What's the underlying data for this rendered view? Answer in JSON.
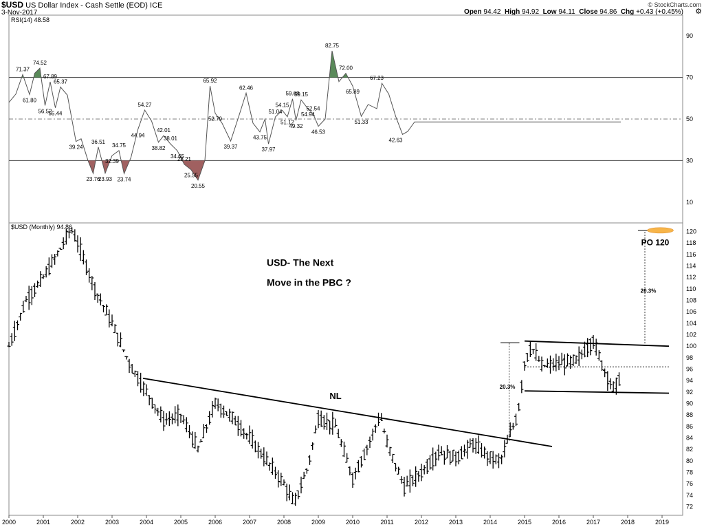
{
  "header": {
    "symbol": "$USD",
    "name": "US Dollar Index - Cash Settle (EOD)",
    "exchange": "ICE",
    "date": "3-Nov-2017",
    "open_label": "Open",
    "open": "94.42",
    "high_label": "High",
    "high": "94.92",
    "low_label": "Low",
    "low": "94.11",
    "close_label": "Close",
    "close": "94.86",
    "chg_label": "Chg",
    "chg": "+0.43 (+0.45%)",
    "watermark": "© StockCharts.com"
  },
  "chart_data": [
    {
      "type": "line",
      "title": "RSI(14) 48.58",
      "ylim": [
        0,
        100
      ],
      "yticks": [
        10,
        30,
        50,
        70,
        90
      ],
      "overbought": 70,
      "oversold": 30,
      "midline": 50,
      "colors": {
        "line": "#555555",
        "overbought_fill": "#5a8a5a",
        "oversold_fill": "#a06060"
      },
      "x": [
        2000.0,
        2000.2,
        2000.4,
        2000.6,
        2000.75,
        2000.9,
        2001.05,
        2001.2,
        2001.35,
        2001.5,
        2001.7,
        2001.95,
        2002.1,
        2002.3,
        2002.45,
        2002.6,
        2002.8,
        2003.0,
        2003.2,
        2003.35,
        2003.55,
        2003.75,
        2003.95,
        2004.15,
        2004.35,
        2004.5,
        2004.7,
        2004.9,
        2005.1,
        2005.3,
        2005.5,
        2005.7,
        2005.85,
        2006.0,
        2006.2,
        2006.45,
        2006.7,
        2006.9,
        2007.1,
        2007.3,
        2007.45,
        2007.55,
        2007.75,
        2007.95,
        2008.1,
        2008.25,
        2008.35,
        2008.5,
        2008.7,
        2008.85,
        2009.0,
        2009.2,
        2009.4,
        2009.6,
        2009.8,
        2010.0,
        2010.25,
        2010.45,
        2010.7,
        2010.85,
        2011.05,
        2011.25,
        2011.45,
        2011.6,
        2011.8,
        2012.0,
        2012.1,
        2012.25,
        2012.4,
        2012.55,
        2012.75,
        2012.95,
        2013.2,
        2013.45,
        2013.6,
        2013.75,
        2013.95,
        2014.15,
        2014.3,
        2014.5,
        2014.7,
        2014.9,
        2015.05,
        2015.15,
        2015.3,
        2015.45,
        2015.65,
        2015.85,
        2016.0,
        2016.2,
        2016.35,
        2016.55,
        2016.75,
        2016.9,
        2017.0,
        2017.15,
        2017.3,
        2017.45,
        2017.6,
        2017.8
      ],
      "y": [
        58.0,
        62.0,
        71.4,
        61.8,
        72.0,
        74.5,
        56.5,
        67.9,
        55.4,
        65.4,
        61.5,
        39.2,
        40.5,
        30.0,
        23.8,
        36.5,
        23.9,
        32.4,
        34.8,
        23.7,
        31.5,
        44.9,
        54.3,
        49.0,
        38.8,
        42.0,
        38.0,
        34.7,
        28.2,
        25.6,
        20.6,
        30.0,
        65.9,
        52.8,
        48.0,
        39.4,
        52.0,
        62.5,
        48.0,
        43.8,
        50.0,
        38.0,
        51.0,
        54.2,
        51.1,
        59.7,
        49.3,
        59.2,
        54.9,
        52.5,
        46.5,
        50.0,
        82.8,
        68.0,
        72.0,
        65.9,
        51.3,
        57.0,
        55.0,
        67.2,
        62.0,
        51.3,
        42.6,
        44.0,
        48.6,
        48.6,
        48.6,
        48.6,
        48.6,
        48.6,
        48.6,
        48.6,
        48.6,
        48.6,
        48.6,
        48.6,
        48.6,
        48.6,
        48.6,
        48.6,
        48.6,
        48.6,
        48.6,
        48.6,
        48.6,
        48.6,
        48.6,
        48.6,
        48.6,
        48.6,
        48.6,
        48.6,
        48.6,
        48.6,
        48.6,
        48.6,
        48.6,
        48.6,
        48.6,
        48.6
      ],
      "annotations": [
        {
          "x": 2000.4,
          "y": 71.4,
          "text": "71.37",
          "pos": "above"
        },
        {
          "x": 2000.6,
          "y": 61.8,
          "text": "61.80",
          "pos": "below"
        },
        {
          "x": 2000.9,
          "y": 74.5,
          "text": "74.52",
          "pos": "above"
        },
        {
          "x": 2001.05,
          "y": 56.5,
          "text": "56.52",
          "pos": "below"
        },
        {
          "x": 2001.2,
          "y": 67.9,
          "text": "67.89",
          "pos": "above"
        },
        {
          "x": 2001.35,
          "y": 55.4,
          "text": "55.44",
          "pos": "below"
        },
        {
          "x": 2001.5,
          "y": 65.4,
          "text": "65.37",
          "pos": "above"
        },
        {
          "x": 2001.95,
          "y": 39.2,
          "text": "39.24",
          "pos": "below"
        },
        {
          "x": 2002.45,
          "y": 23.8,
          "text": "23.76",
          "pos": "below"
        },
        {
          "x": 2002.6,
          "y": 36.5,
          "text": "36.51",
          "pos": "above"
        },
        {
          "x": 2002.8,
          "y": 23.9,
          "text": "23.93",
          "pos": "below"
        },
        {
          "x": 2003.0,
          "y": 32.4,
          "text": "32.39",
          "pos": "below"
        },
        {
          "x": 2003.2,
          "y": 34.8,
          "text": "34.75",
          "pos": "above"
        },
        {
          "x": 2003.35,
          "y": 23.7,
          "text": "23.74",
          "pos": "below"
        },
        {
          "x": 2003.75,
          "y": 44.9,
          "text": "44.94",
          "pos": "below"
        },
        {
          "x": 2003.95,
          "y": 54.3,
          "text": "54.27",
          "pos": "above"
        },
        {
          "x": 2004.35,
          "y": 38.8,
          "text": "38.82",
          "pos": "below"
        },
        {
          "x": 2004.5,
          "y": 42.0,
          "text": "42.01",
          "pos": "above"
        },
        {
          "x": 2004.7,
          "y": 38.0,
          "text": "38.01",
          "pos": "above"
        },
        {
          "x": 2004.9,
          "y": 34.7,
          "text": "34.65",
          "pos": "below"
        },
        {
          "x": 2005.1,
          "y": 28.2,
          "text": "28.21",
          "pos": "above"
        },
        {
          "x": 2005.3,
          "y": 25.6,
          "text": "25.55",
          "pos": "below"
        },
        {
          "x": 2005.5,
          "y": 20.6,
          "text": "20.55",
          "pos": "below"
        },
        {
          "x": 2005.85,
          "y": 65.9,
          "text": "65.92",
          "pos": "above"
        },
        {
          "x": 2006.0,
          "y": 52.8,
          "text": "52.79",
          "pos": "below"
        },
        {
          "x": 2006.45,
          "y": 39.4,
          "text": "39.37",
          "pos": "below"
        },
        {
          "x": 2006.9,
          "y": 62.5,
          "text": "62.46",
          "pos": "above"
        },
        {
          "x": 2007.3,
          "y": 43.8,
          "text": "43.75",
          "pos": "below"
        },
        {
          "x": 2007.55,
          "y": 38.0,
          "text": "37.97",
          "pos": "below"
        },
        {
          "x": 2007.75,
          "y": 51.0,
          "text": "51.04",
          "pos": "above"
        },
        {
          "x": 2007.95,
          "y": 54.2,
          "text": "54.15",
          "pos": "above"
        },
        {
          "x": 2008.1,
          "y": 51.1,
          "text": "51.12",
          "pos": "below"
        },
        {
          "x": 2008.25,
          "y": 59.7,
          "text": "59.68",
          "pos": "above"
        },
        {
          "x": 2008.35,
          "y": 49.3,
          "text": "49.32",
          "pos": "below"
        },
        {
          "x": 2008.5,
          "y": 59.2,
          "text": "59.15",
          "pos": "above"
        },
        {
          "x": 2008.7,
          "y": 54.9,
          "text": "54.94",
          "pos": "below"
        },
        {
          "x": 2008.85,
          "y": 52.5,
          "text": "52.54",
          "pos": "above"
        },
        {
          "x": 2009.0,
          "y": 46.5,
          "text": "46.53",
          "pos": "below"
        },
        {
          "x": 2009.4,
          "y": 82.8,
          "text": "82.75",
          "pos": "above"
        },
        {
          "x": 2009.8,
          "y": 72.0,
          "text": "72.00",
          "pos": "above"
        },
        {
          "x": 2010.0,
          "y": 65.9,
          "text": "65.89",
          "pos": "below"
        },
        {
          "x": 2010.25,
          "y": 51.3,
          "text": "51.33",
          "pos": "below"
        },
        {
          "x": 2010.7,
          "y": 67.2,
          "text": "67.23",
          "pos": "above"
        },
        {
          "x": 2011.25,
          "y": 42.6,
          "text": "42.63",
          "pos": "below"
        }
      ]
    },
    {
      "type": "line",
      "title": "$USD (Monthly) 94.86",
      "ylim": [
        70.5,
        121.5
      ],
      "yticks": [
        72,
        74,
        76,
        78,
        80,
        82,
        84,
        86,
        88,
        90,
        92,
        94,
        96,
        98,
        100,
        102,
        104,
        106,
        108,
        110,
        112,
        114,
        116,
        118,
        120
      ],
      "xticks": [
        "2000",
        "2001",
        "2002",
        "2003",
        "2004",
        "2005",
        "2006",
        "2007",
        "2008",
        "2009",
        "2010",
        "2011",
        "2012",
        "2013",
        "2014",
        "2015",
        "2016",
        "2017",
        "2018",
        "2019"
      ],
      "xlim": [
        2000.0,
        2019.6
      ],
      "x": [
        2000.0,
        2000.5,
        2001.0,
        2001.5,
        2001.8,
        2002.0,
        2002.5,
        2003.0,
        2003.5,
        2004.0,
        2004.5,
        2005.0,
        2005.5,
        2006.0,
        2006.5,
        2007.0,
        2007.5,
        2008.0,
        2008.3,
        2008.7,
        2009.0,
        2009.5,
        2010.0,
        2010.4,
        2010.8,
        2011.0,
        2011.5,
        2012.0,
        2012.5,
        2013.0,
        2013.5,
        2014.0,
        2014.3,
        2014.6,
        2014.8,
        2015.0,
        2015.2,
        2015.5,
        2016.0,
        2016.5,
        2017.0,
        2017.3,
        2017.6,
        2017.8
      ],
      "y": [
        100.0,
        108.0,
        112.0,
        117.0,
        120.5,
        118.0,
        110.0,
        104.0,
        97.0,
        92.0,
        87.0,
        88.0,
        82.0,
        90.0,
        87.5,
        84.0,
        80.0,
        76.0,
        72.5,
        79.0,
        87.5,
        86.0,
        77.0,
        82.0,
        88.0,
        83.0,
        75.5,
        78.0,
        81.5,
        80.5,
        83.0,
        80.5,
        80.0,
        85.0,
        88.0,
        97.0,
        100.0,
        96.5,
        97.0,
        97.5,
        101.0,
        96.0,
        92.5,
        94.86
      ],
      "annotations": [
        {
          "text": "USD- The Next",
          "x": 2007.5,
          "y": 114.0
        },
        {
          "text": "Move in the PBC ?",
          "x": 2007.5,
          "y": 110.5
        },
        {
          "text": "NL",
          "x": 2009.5,
          "y": 90.8
        },
        {
          "text": "20.3%",
          "x": 2014.5,
          "y": 92.6
        },
        {
          "text": "20.3%",
          "x": 2018.6,
          "y": 109.3
        },
        {
          "text": "PO 120",
          "x": 2018.8,
          "y": 117.6
        }
      ],
      "trendlines": [
        {
          "name": "NL",
          "x": [
            2003.9,
            2015.8
          ],
          "y": [
            94.4,
            82.5
          ]
        },
        {
          "name": "upper",
          "x": [
            2015.0,
            2019.2
          ],
          "y": [
            100.9,
            100.0
          ]
        },
        {
          "name": "lower",
          "x": [
            2015.0,
            2019.2
          ],
          "y": [
            92.2,
            91.8
          ]
        }
      ]
    }
  ]
}
